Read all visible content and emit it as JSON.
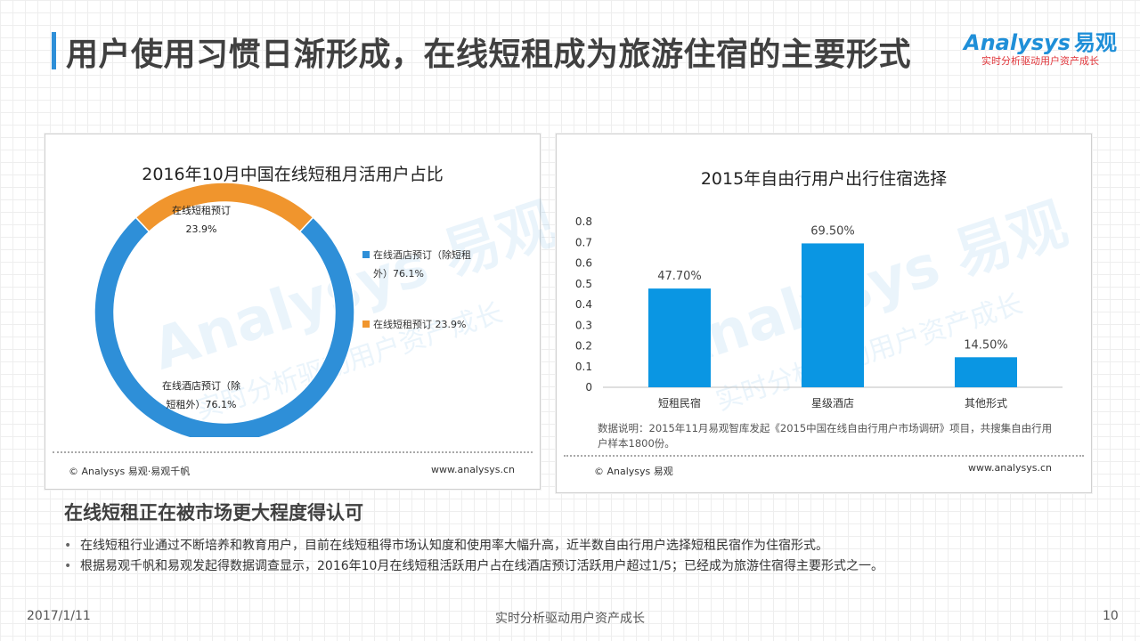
{
  "header": {
    "title": "用户使用习惯日渐形成，在线短租成为旅游住宿的主要形式",
    "logo_brand": "Analysys",
    "logo_cn": "易观",
    "logo_slogan": "实时分析驱动用户资产成长"
  },
  "watermark": {
    "text": "Analysys 易观",
    "sub": "实时分析驱动用户资产成长"
  },
  "left_panel": {
    "footer_left": "© Analysys 易观·易观千帆",
    "footer_right": "www.analysys.cn"
  },
  "right_panel": {
    "note": "数据说明：2015年11月易观智库发起《2015中国在线自由行用户市场调研》项目，共搜集自由行用户样本1800份。",
    "footer_left": "© Analysys 易观",
    "footer_right": "www.analysys.cn"
  },
  "chart_data": [
    {
      "type": "pie",
      "title": "2016年10月中国在线短租月活用户占比",
      "slices": [
        {
          "name": "在线酒店预订（除短租外）",
          "value": 76.1,
          "label": "76.1%",
          "legend": "在线酒店预订（除短租外）76.1%",
          "color": "#2e8fd8"
        },
        {
          "name": "在线短租预订",
          "value": 23.9,
          "label": "23.9%",
          "legend": "在线短租预订 23.9%",
          "color": "#f0952d"
        }
      ],
      "inner_labels": {
        "hotel_line1": "在线酒店预订（除",
        "hotel_line2": "短租外）76.1%",
        "rental_line1": "在线短租预订",
        "rental_line2": "23.9%"
      },
      "legend_lines": {
        "hotel_line1": "在线酒店预订（除短租",
        "hotel_line2": "外）76.1%",
        "rental": "在线短租预订 23.9%"
      },
      "donut": true
    },
    {
      "type": "bar",
      "title": "2015年自由行用户出行住宿选择",
      "categories": [
        "短租民宿",
        "星级酒店",
        "其他形式"
      ],
      "values": [
        0.477,
        0.695,
        0.145
      ],
      "data_labels": [
        "47.70%",
        "69.50%",
        "14.50%"
      ],
      "ylim": [
        0,
        0.8
      ],
      "yticks": [
        "0",
        "0.1",
        "0.2",
        "0.3",
        "0.4",
        "0.5",
        "0.6",
        "0.7",
        "0.8"
      ],
      "color": "#0a96e3",
      "xlabel": "",
      "ylabel": "",
      "grid": false
    }
  ],
  "section": {
    "title": "在线短租正在被市场更大程度得认可",
    "bullets": [
      "在线短租行业通过不断培养和教育用户，目前在线短租得市场认知度和使用率大幅升高，近半数自由行用户选择短租民宿作为住宿形式。",
      "根据易观千帆和易观发起得数据调查显示，2016年10月在线短租活跃用户占在线酒店预订活跃用户超过1/5；已经成为旅游住宿得主要形式之一。"
    ]
  },
  "footer": {
    "date": "2017/1/11",
    "center": "实时分析驱动用户资产成长",
    "page": "10"
  }
}
